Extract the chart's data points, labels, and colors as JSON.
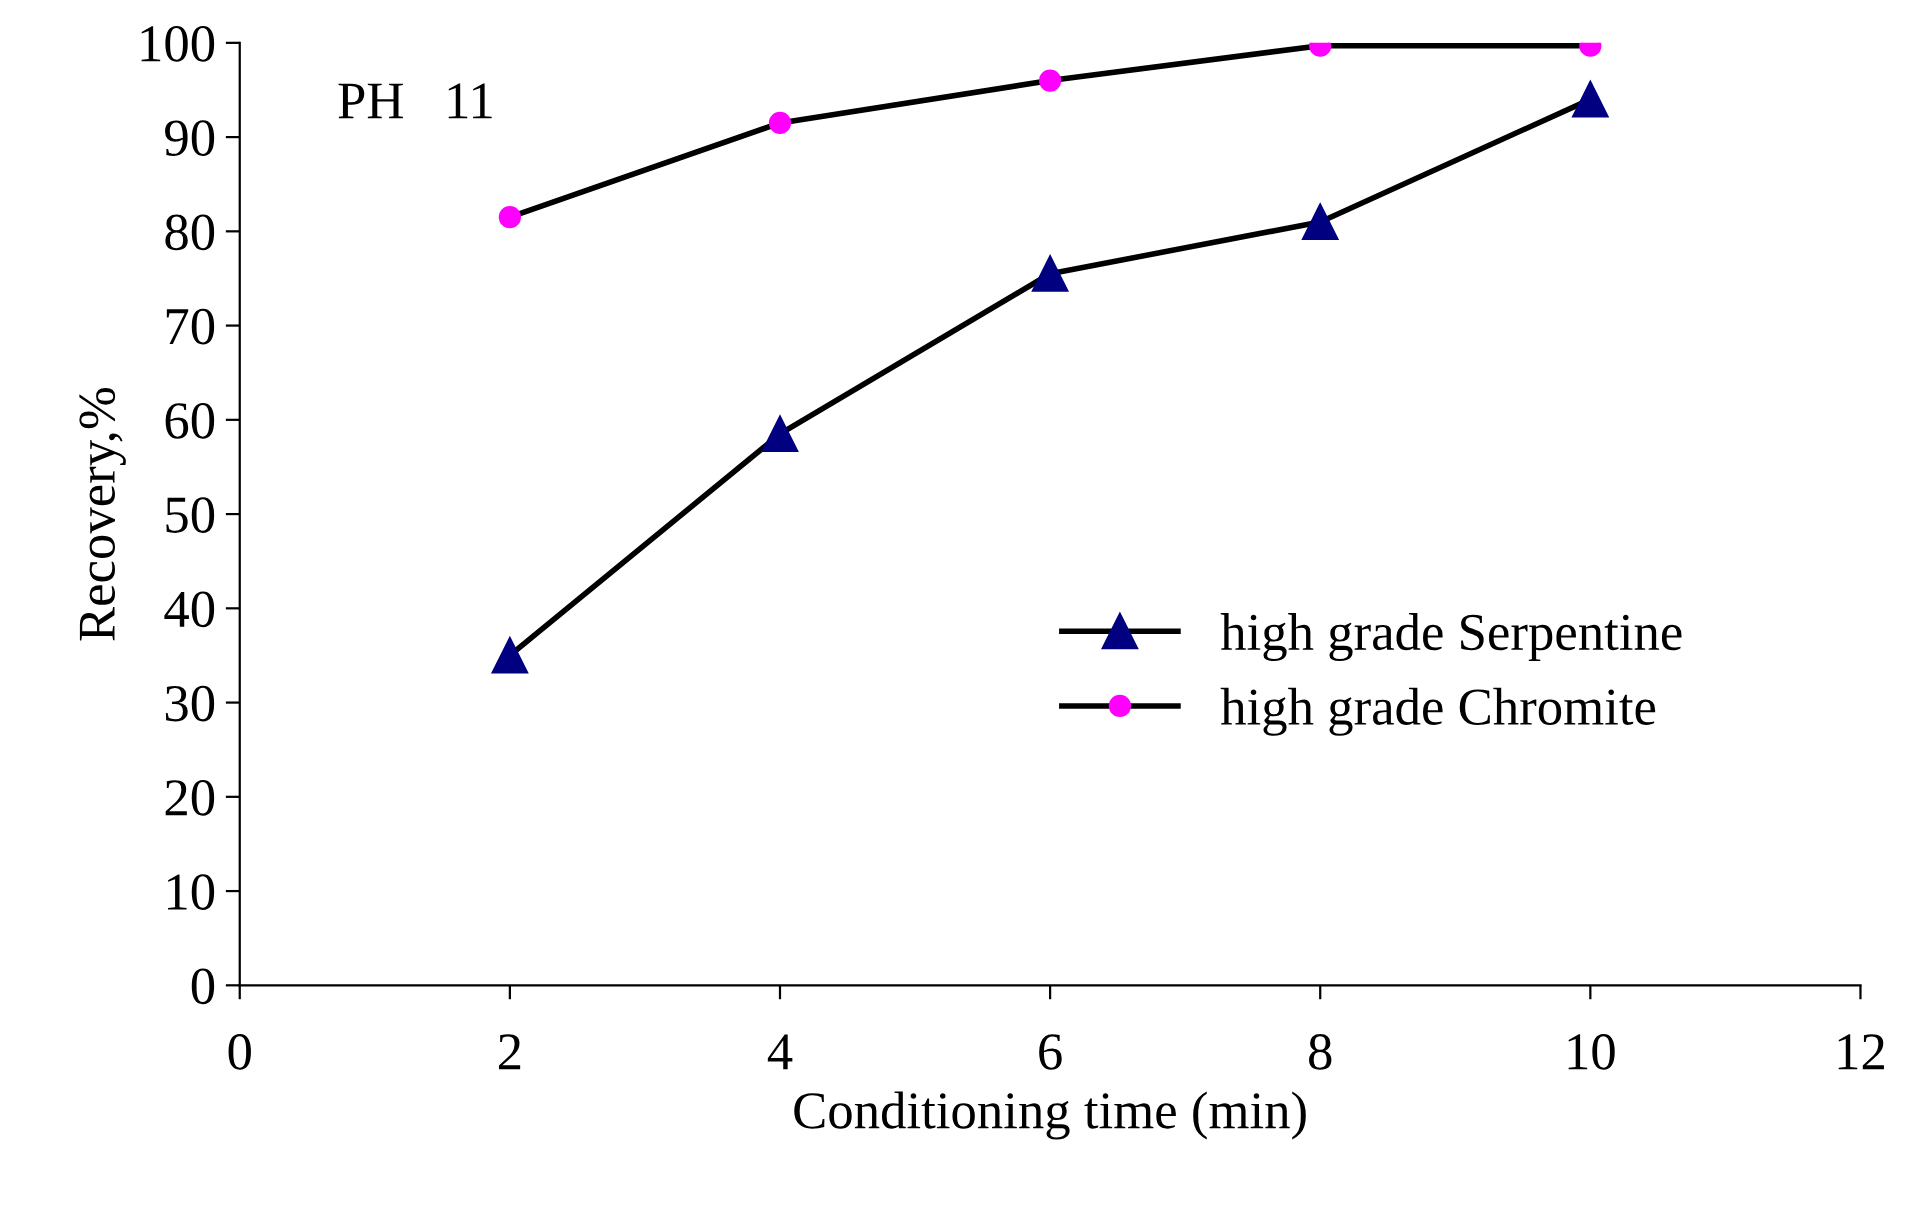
{
  "chart_data": {
    "type": "line",
    "xlabel": "Conditioning time (min)",
    "ylabel": "Recovery,%",
    "annotations": [
      "PH   11"
    ],
    "xlim": [
      0,
      12
    ],
    "xticks": [
      0,
      2,
      4,
      6,
      8,
      10,
      12
    ],
    "ylim": [
      0,
      100
    ],
    "yticks": [
      0,
      10,
      20,
      30,
      40,
      50,
      60,
      70,
      80,
      90,
      100
    ],
    "grid": false,
    "legend": "right",
    "line_style": "solid",
    "series": [
      {
        "name": "high grade Serpentine",
        "color": "#000080",
        "marker": "triangle",
        "x": [
          2,
          4,
          6,
          8,
          10
        ],
        "values": [
          35,
          58.5,
          75.5,
          81,
          94
        ]
      },
      {
        "name": "high grade Chromite",
        "color": "#ff00ff",
        "marker": "circle",
        "x": [
          2,
          4,
          6,
          8,
          10
        ],
        "values": [
          81.5,
          91.5,
          96,
          99.7,
          99.7
        ]
      }
    ]
  }
}
